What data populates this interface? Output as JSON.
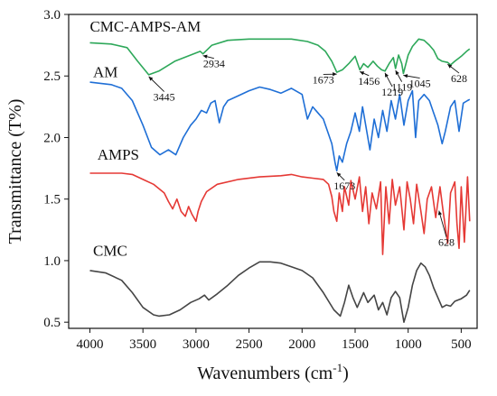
{
  "chart_data": {
    "type": "line",
    "title": "",
    "xlabel": "Wavenumbers (cm",
    "xlabel_sup": "-1",
    "xlabel_close": ")",
    "ylabel": "Transmittance (T%)",
    "xlim": [
      4200,
      350
    ],
    "ylim": [
      0.45,
      3.0
    ],
    "x_ticks": [
      4000,
      3500,
      3000,
      2500,
      2000,
      1500,
      1000,
      500
    ],
    "y_ticks": [
      0.5,
      1.0,
      1.5,
      2.0,
      2.5,
      3.0
    ],
    "x_tick_labels": [
      "4000",
      "3500",
      "3000",
      "2500",
      "2000",
      "1500",
      "1000",
      "500"
    ],
    "y_tick_labels": [
      "0.5",
      "1.0",
      "1.5",
      "2.0",
      "2.5",
      "3.0"
    ],
    "grid": false,
    "series": [
      {
        "name": "CMC-AMPS-AM",
        "color": "#2ea85a",
        "points": [
          [
            4000,
            2.77
          ],
          [
            3800,
            2.76
          ],
          [
            3650,
            2.73
          ],
          [
            3550,
            2.62
          ],
          [
            3445,
            2.51
          ],
          [
            3350,
            2.54
          ],
          [
            3200,
            2.62
          ],
          [
            3050,
            2.67
          ],
          [
            2960,
            2.7
          ],
          [
            2934,
            2.68
          ],
          [
            2850,
            2.75
          ],
          [
            2700,
            2.79
          ],
          [
            2500,
            2.8
          ],
          [
            2300,
            2.8
          ],
          [
            2100,
            2.8
          ],
          [
            1950,
            2.78
          ],
          [
            1850,
            2.75
          ],
          [
            1780,
            2.7
          ],
          [
            1720,
            2.62
          ],
          [
            1673,
            2.53
          ],
          [
            1620,
            2.55
          ],
          [
            1560,
            2.6
          ],
          [
            1500,
            2.66
          ],
          [
            1456,
            2.55
          ],
          [
            1420,
            2.6
          ],
          [
            1380,
            2.57
          ],
          [
            1330,
            2.62
          ],
          [
            1290,
            2.58
          ],
          [
            1250,
            2.55
          ],
          [
            1219,
            2.54
          ],
          [
            1180,
            2.6
          ],
          [
            1140,
            2.65
          ],
          [
            1119,
            2.56
          ],
          [
            1090,
            2.67
          ],
          [
            1060,
            2.6
          ],
          [
            1045,
            2.52
          ],
          [
            1000,
            2.67
          ],
          [
            960,
            2.74
          ],
          [
            900,
            2.8
          ],
          [
            850,
            2.79
          ],
          [
            800,
            2.75
          ],
          [
            760,
            2.71
          ],
          [
            720,
            2.64
          ],
          [
            680,
            2.62
          ],
          [
            628,
            2.61
          ],
          [
            600,
            2.59
          ],
          [
            560,
            2.62
          ],
          [
            500,
            2.66
          ],
          [
            450,
            2.7
          ],
          [
            420,
            2.72
          ]
        ]
      },
      {
        "name": "AM",
        "color": "#1f6fd6",
        "points": [
          [
            4000,
            2.45
          ],
          [
            3900,
            2.44
          ],
          [
            3800,
            2.43
          ],
          [
            3700,
            2.4
          ],
          [
            3600,
            2.3
          ],
          [
            3500,
            2.1
          ],
          [
            3420,
            1.92
          ],
          [
            3340,
            1.86
          ],
          [
            3260,
            1.9
          ],
          [
            3190,
            1.86
          ],
          [
            3120,
            2.0
          ],
          [
            3050,
            2.1
          ],
          [
            3000,
            2.15
          ],
          [
            2950,
            2.22
          ],
          [
            2900,
            2.2
          ],
          [
            2860,
            2.28
          ],
          [
            2820,
            2.3
          ],
          [
            2780,
            2.12
          ],
          [
            2740,
            2.25
          ],
          [
            2700,
            2.3
          ],
          [
            2600,
            2.34
          ],
          [
            2500,
            2.38
          ],
          [
            2400,
            2.41
          ],
          [
            2300,
            2.39
          ],
          [
            2200,
            2.36
          ],
          [
            2100,
            2.4
          ],
          [
            2000,
            2.35
          ],
          [
            1950,
            2.15
          ],
          [
            1900,
            2.25
          ],
          [
            1850,
            2.2
          ],
          [
            1800,
            2.15
          ],
          [
            1760,
            2.05
          ],
          [
            1720,
            1.95
          ],
          [
            1690,
            1.8
          ],
          [
            1673,
            1.73
          ],
          [
            1650,
            1.85
          ],
          [
            1620,
            1.8
          ],
          [
            1580,
            1.95
          ],
          [
            1540,
            2.05
          ],
          [
            1500,
            2.2
          ],
          [
            1460,
            2.05
          ],
          [
            1430,
            2.25
          ],
          [
            1400,
            2.1
          ],
          [
            1360,
            1.9
          ],
          [
            1320,
            2.15
          ],
          [
            1280,
            2.0
          ],
          [
            1240,
            2.22
          ],
          [
            1200,
            2.05
          ],
          [
            1160,
            2.3
          ],
          [
            1120,
            2.15
          ],
          [
            1080,
            2.35
          ],
          [
            1040,
            2.1
          ],
          [
            1000,
            2.3
          ],
          [
            960,
            2.38
          ],
          [
            930,
            2.0
          ],
          [
            900,
            2.3
          ],
          [
            850,
            2.35
          ],
          [
            800,
            2.3
          ],
          [
            760,
            2.2
          ],
          [
            720,
            2.1
          ],
          [
            680,
            1.95
          ],
          [
            650,
            2.05
          ],
          [
            600,
            2.25
          ],
          [
            560,
            2.3
          ],
          [
            520,
            2.05
          ],
          [
            480,
            2.28
          ],
          [
            440,
            2.3
          ],
          [
            420,
            2.31
          ]
        ]
      },
      {
        "name": "AMPS",
        "color": "#e53935",
        "points": [
          [
            4000,
            1.71
          ],
          [
            3900,
            1.71
          ],
          [
            3700,
            1.71
          ],
          [
            3600,
            1.7
          ],
          [
            3500,
            1.66
          ],
          [
            3400,
            1.62
          ],
          [
            3300,
            1.55
          ],
          [
            3260,
            1.48
          ],
          [
            3220,
            1.42
          ],
          [
            3180,
            1.5
          ],
          [
            3140,
            1.4
          ],
          [
            3100,
            1.36
          ],
          [
            3070,
            1.44
          ],
          [
            3040,
            1.38
          ],
          [
            3000,
            1.32
          ],
          [
            2980,
            1.4
          ],
          [
            2950,
            1.48
          ],
          [
            2900,
            1.56
          ],
          [
            2800,
            1.62
          ],
          [
            2600,
            1.66
          ],
          [
            2400,
            1.68
          ],
          [
            2200,
            1.69
          ],
          [
            2100,
            1.7
          ],
          [
            2000,
            1.68
          ],
          [
            1900,
            1.67
          ],
          [
            1800,
            1.66
          ],
          [
            1750,
            1.62
          ],
          [
            1720,
            1.52
          ],
          [
            1700,
            1.4
          ],
          [
            1673,
            1.32
          ],
          [
            1650,
            1.55
          ],
          [
            1620,
            1.4
          ],
          [
            1600,
            1.6
          ],
          [
            1560,
            1.45
          ],
          [
            1540,
            1.65
          ],
          [
            1500,
            1.5
          ],
          [
            1460,
            1.68
          ],
          [
            1430,
            1.4
          ],
          [
            1400,
            1.6
          ],
          [
            1370,
            1.3
          ],
          [
            1340,
            1.55
          ],
          [
            1300,
            1.42
          ],
          [
            1260,
            1.64
          ],
          [
            1240,
            1.05
          ],
          [
            1210,
            1.6
          ],
          [
            1180,
            1.3
          ],
          [
            1150,
            1.66
          ],
          [
            1120,
            1.45
          ],
          [
            1080,
            1.6
          ],
          [
            1040,
            1.25
          ],
          [
            1010,
            1.64
          ],
          [
            980,
            1.5
          ],
          [
            950,
            1.3
          ],
          [
            920,
            1.62
          ],
          [
            880,
            1.4
          ],
          [
            850,
            1.22
          ],
          [
            820,
            1.5
          ],
          [
            780,
            1.6
          ],
          [
            740,
            1.35
          ],
          [
            700,
            1.6
          ],
          [
            670,
            1.4
          ],
          [
            628,
            1.14
          ],
          [
            600,
            1.55
          ],
          [
            560,
            1.64
          ],
          [
            540,
            1.3
          ],
          [
            520,
            1.1
          ],
          [
            500,
            1.6
          ],
          [
            470,
            1.15
          ],
          [
            440,
            1.68
          ],
          [
            420,
            1.32
          ]
        ]
      },
      {
        "name": "CMC",
        "color": "#454545",
        "points": [
          [
            4000,
            0.92
          ],
          [
            3850,
            0.9
          ],
          [
            3700,
            0.84
          ],
          [
            3600,
            0.74
          ],
          [
            3500,
            0.62
          ],
          [
            3400,
            0.56
          ],
          [
            3350,
            0.55
          ],
          [
            3250,
            0.56
          ],
          [
            3150,
            0.6
          ],
          [
            3050,
            0.66
          ],
          [
            2970,
            0.69
          ],
          [
            2920,
            0.72
          ],
          [
            2880,
            0.68
          ],
          [
            2800,
            0.73
          ],
          [
            2700,
            0.8
          ],
          [
            2600,
            0.88
          ],
          [
            2500,
            0.94
          ],
          [
            2400,
            0.99
          ],
          [
            2300,
            0.99
          ],
          [
            2200,
            0.98
          ],
          [
            2100,
            0.95
          ],
          [
            2000,
            0.92
          ],
          [
            1900,
            0.86
          ],
          [
            1800,
            0.74
          ],
          [
            1700,
            0.6
          ],
          [
            1640,
            0.55
          ],
          [
            1600,
            0.66
          ],
          [
            1560,
            0.8
          ],
          [
            1520,
            0.7
          ],
          [
            1480,
            0.62
          ],
          [
            1420,
            0.74
          ],
          [
            1380,
            0.66
          ],
          [
            1320,
            0.72
          ],
          [
            1280,
            0.6
          ],
          [
            1240,
            0.66
          ],
          [
            1200,
            0.56
          ],
          [
            1160,
            0.7
          ],
          [
            1120,
            0.75
          ],
          [
            1080,
            0.7
          ],
          [
            1040,
            0.5
          ],
          [
            1000,
            0.62
          ],
          [
            960,
            0.8
          ],
          [
            920,
            0.92
          ],
          [
            880,
            0.98
          ],
          [
            840,
            0.95
          ],
          [
            800,
            0.88
          ],
          [
            760,
            0.78
          ],
          [
            720,
            0.7
          ],
          [
            680,
            0.62
          ],
          [
            640,
            0.64
          ],
          [
            600,
            0.63
          ],
          [
            560,
            0.67
          ],
          [
            500,
            0.69
          ],
          [
            450,
            0.72
          ],
          [
            420,
            0.76
          ]
        ]
      }
    ],
    "series_labels": [
      {
        "series": "CMC-AMPS-AM",
        "text": "CMC-AMPS-AM",
        "x": 4000,
        "y": 2.86
      },
      {
        "series": "AM",
        "text": "AM",
        "x": 3970,
        "y": 2.49
      },
      {
        "series": "AMPS",
        "text": "AMPS",
        "x": 3930,
        "y": 1.82
      },
      {
        "series": "CMC",
        "text": "CMC",
        "x": 3970,
        "y": 1.04
      }
    ],
    "annotations": [
      {
        "text": "3445",
        "x": 3445,
        "y": 2.51,
        "tx": 3300,
        "ty": 2.3
      },
      {
        "text": "2934",
        "x": 2934,
        "y": 2.68,
        "tx": 2830,
        "ty": 2.57
      },
      {
        "text": "1673",
        "x": 1673,
        "y": 2.53,
        "tx": 1800,
        "ty": 2.44
      },
      {
        "text": "1456",
        "x": 1456,
        "y": 2.55,
        "tx": 1370,
        "ty": 2.43
      },
      {
        "text": "1219",
        "x": 1219,
        "y": 2.54,
        "tx": 1150,
        "ty": 2.34
      },
      {
        "text": "1119",
        "x": 1119,
        "y": 2.56,
        "tx": 1060,
        "ty": 2.38
      },
      {
        "text": "1045",
        "x": 1045,
        "y": 2.52,
        "tx": 890,
        "ty": 2.41
      },
      {
        "text": "628",
        "x": 628,
        "y": 2.61,
        "tx": 520,
        "ty": 2.45
      },
      {
        "text": "1673",
        "x": 1673,
        "y": 1.73,
        "tx": 1600,
        "ty": 1.58
      },
      {
        "text": "628",
        "x": 710,
        "y": 1.42,
        "tx": 640,
        "ty": 1.12
      }
    ]
  }
}
